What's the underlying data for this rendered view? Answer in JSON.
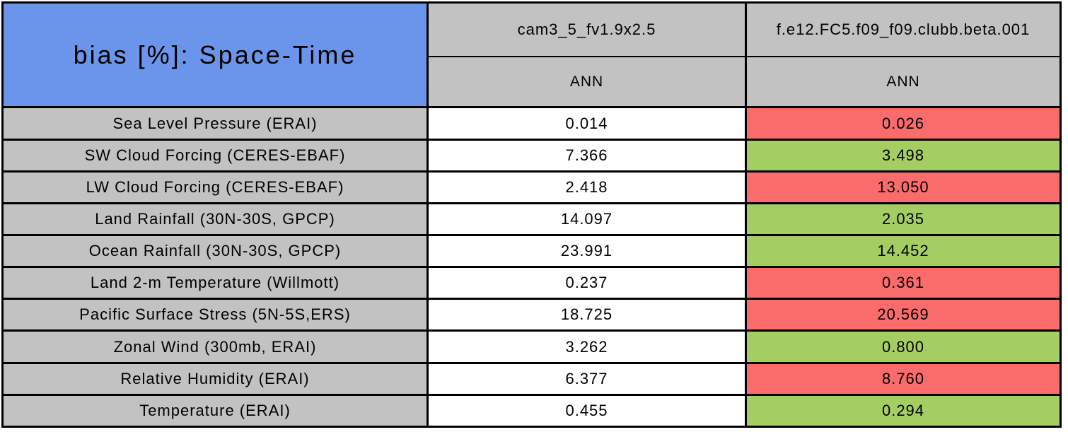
{
  "colors": {
    "title_blue": "#6B95EA",
    "header_gray": "#C2C2C2",
    "worse_red": "#FA6B6B",
    "better_green": "#A5CE62",
    "border_black": "#000000",
    "neutral_white": "#FFFFFF"
  },
  "chart_data": {
    "type": "table",
    "title": "bias [%]: Space-Time",
    "columns": [
      {
        "model": "cam3_5_fv1.9x2.5",
        "season": "ANN"
      },
      {
        "model": "f.e12.FC5.f09_f09.clubb.beta.001",
        "season": "ANN"
      }
    ],
    "rows": [
      {
        "label": "Sea Level Pressure (ERAI)",
        "cells": [
          {
            "value": "0.014",
            "status": "neutral"
          },
          {
            "value": "0.026",
            "status": "worse"
          }
        ]
      },
      {
        "label": "SW Cloud Forcing (CERES-EBAF)",
        "cells": [
          {
            "value": "7.366",
            "status": "neutral"
          },
          {
            "value": "3.498",
            "status": "better"
          }
        ]
      },
      {
        "label": "LW Cloud Forcing (CERES-EBAF)",
        "cells": [
          {
            "value": "2.418",
            "status": "neutral"
          },
          {
            "value": "13.050",
            "status": "worse"
          }
        ]
      },
      {
        "label": "Land Rainfall (30N-30S, GPCP)",
        "cells": [
          {
            "value": "14.097",
            "status": "neutral"
          },
          {
            "value": "2.035",
            "status": "better"
          }
        ]
      },
      {
        "label": "Ocean Rainfall (30N-30S, GPCP)",
        "cells": [
          {
            "value": "23.991",
            "status": "neutral"
          },
          {
            "value": "14.452",
            "status": "better"
          }
        ]
      },
      {
        "label": "Land 2-m Temperature (Willmott)",
        "cells": [
          {
            "value": "0.237",
            "status": "neutral"
          },
          {
            "value": "0.361",
            "status": "worse"
          }
        ]
      },
      {
        "label": "Pacific Surface Stress (5N-5S,ERS)",
        "cells": [
          {
            "value": "18.725",
            "status": "neutral"
          },
          {
            "value": "20.569",
            "status": "worse"
          }
        ]
      },
      {
        "label": "Zonal Wind (300mb, ERAI)",
        "cells": [
          {
            "value": "3.262",
            "status": "neutral"
          },
          {
            "value": "0.800",
            "status": "better"
          }
        ]
      },
      {
        "label": "Relative Humidity (ERAI)",
        "cells": [
          {
            "value": "6.377",
            "status": "neutral"
          },
          {
            "value": "8.760",
            "status": "worse"
          }
        ]
      },
      {
        "label": "Temperature (ERAI)",
        "cells": [
          {
            "value": "0.455",
            "status": "neutral"
          },
          {
            "value": "0.294",
            "status": "better"
          }
        ]
      }
    ]
  }
}
